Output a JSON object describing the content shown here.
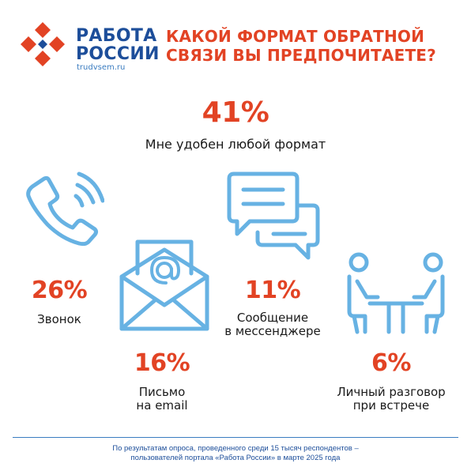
{
  "brand": {
    "name_line1": "РАБОТА",
    "name_line2": "РОССИИ",
    "url": "trudvsem.ru",
    "colors": {
      "blue": "#1d4e9a",
      "red": "#e24324",
      "light_blue": "#67b2e3"
    }
  },
  "headline": {
    "line1": "КАКОЙ ФОРМАТ ОБРАТНОЙ",
    "line2": "СВЯЗИ ВЫ ПРЕДПОЧИТАЕТЕ?"
  },
  "items": [
    {
      "percent": "41%",
      "label_line1": "Мне удобен любой формат",
      "label_line2": ""
    },
    {
      "percent": "26%",
      "label_line1": "Звонок",
      "label_line2": "",
      "icon": "phone-icon"
    },
    {
      "percent": "16%",
      "label_line1": "Письмо",
      "label_line2": "на email",
      "icon": "email-envelope-icon"
    },
    {
      "percent": "11%",
      "label_line1": "Сообщение",
      "label_line2": "в мессенджере",
      "icon": "chat-bubbles-icon"
    },
    {
      "percent": "6%",
      "label_line1": "Личный разговор",
      "label_line2": "при встрече",
      "icon": "meeting-icon"
    }
  ],
  "footnote": {
    "line1": "По результатам опроса, проведенного среди 15 тысяч респондентов –",
    "line2": "пользователей портала «Работа России» в марте 2025 года"
  }
}
